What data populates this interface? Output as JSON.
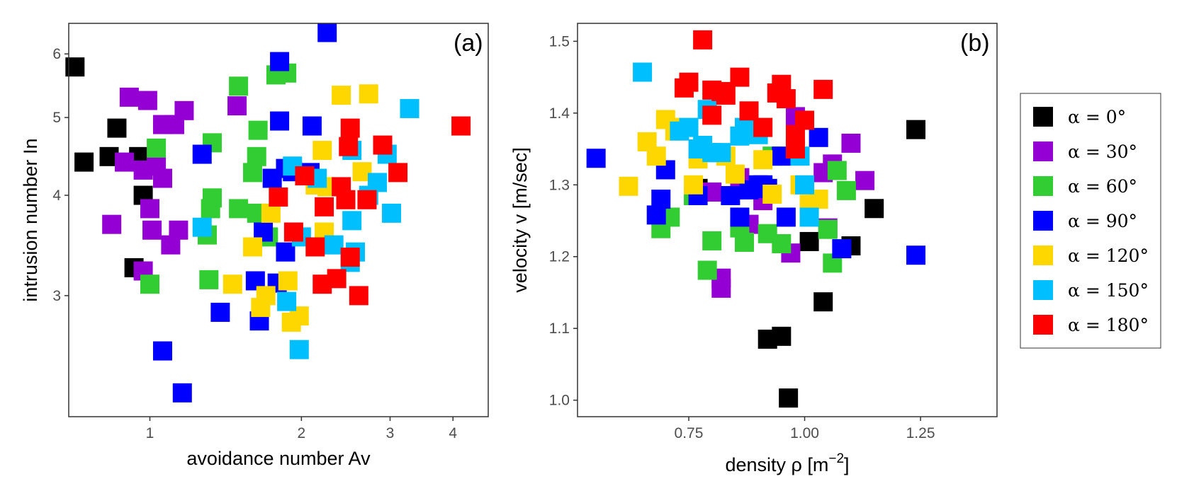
{
  "chart_data": [
    {
      "type": "scatter",
      "panel_label": "(a)",
      "xlabel": "avoidance number Av",
      "ylabel": "intrusion number In",
      "x_scale": "log",
      "y_scale": "log",
      "xlim": [
        0.69,
        4.7
      ],
      "ylim": [
        2.12,
        6.55
      ],
      "x_ticks": [
        1,
        2,
        3,
        4
      ],
      "x_tick_labels": [
        "1",
        "2",
        "3",
        "4"
      ],
      "y_ticks": [
        3,
        4,
        5,
        6
      ],
      "y_tick_labels": [
        "3",
        "4",
        "5",
        "6"
      ],
      "grid": false,
      "series": [
        {
          "name": "α = 0°",
          "points": [
            [
              0.71,
              5.78
            ],
            [
              0.74,
              4.4
            ],
            [
              0.83,
              4.47
            ],
            [
              0.86,
              4.85
            ],
            [
              0.95,
              4.47
            ],
            [
              0.97,
              4.0
            ],
            [
              0.93,
              3.25
            ]
          ]
        },
        {
          "name": "α = 30°",
          "points": [
            [
              0.91,
              5.3
            ],
            [
              0.99,
              5.25
            ],
            [
              0.89,
              4.4
            ],
            [
              0.97,
              4.3
            ],
            [
              1.03,
              4.35
            ],
            [
              1.06,
              4.2
            ],
            [
              1.06,
              4.9
            ],
            [
              1.12,
              4.9
            ],
            [
              1.17,
              5.1
            ],
            [
              1.49,
              5.17
            ],
            [
              1.0,
              3.85
            ],
            [
              1.01,
              3.62
            ],
            [
              1.1,
              3.47
            ],
            [
              1.14,
              3.62
            ],
            [
              0.84,
              3.68
            ],
            [
              0.97,
              3.22
            ]
          ]
        },
        {
          "name": "α = 60°",
          "points": [
            [
              1.78,
              5.65
            ],
            [
              1.87,
              5.68
            ],
            [
              1.5,
              5.47
            ],
            [
              1.33,
              4.65
            ],
            [
              1.64,
              4.82
            ],
            [
              1.63,
              4.47
            ],
            [
              1.6,
              4.27
            ],
            [
              1.03,
              4.58
            ],
            [
              1.33,
              3.97
            ],
            [
              1.32,
              3.85
            ],
            [
              1.5,
              3.85
            ],
            [
              1.63,
              3.8
            ],
            [
              1.72,
              3.55
            ],
            [
              1.3,
              3.57
            ],
            [
              1.31,
              3.14
            ],
            [
              1.0,
              3.1
            ]
          ]
        },
        {
          "name": "α = 90°",
          "points": [
            [
              2.25,
              6.38
            ],
            [
              1.81,
              5.87
            ],
            [
              1.81,
              4.95
            ],
            [
              2.1,
              4.88
            ],
            [
              1.27,
              4.5
            ],
            [
              1.86,
              4.32
            ],
            [
              1.75,
              4.2
            ],
            [
              1.92,
              4.28
            ],
            [
              2.08,
              4.27
            ],
            [
              1.68,
              3.6
            ],
            [
              1.86,
              3.4
            ],
            [
              1.62,
              3.13
            ],
            [
              1.79,
              3.11
            ],
            [
              1.38,
              2.86
            ],
            [
              1.65,
              2.79
            ],
            [
              1.06,
              2.56
            ],
            [
              1.16,
              2.27
            ]
          ]
        },
        {
          "name": "α = 120°",
          "points": [
            [
              2.4,
              5.33
            ],
            [
              2.72,
              5.35
            ],
            [
              2.2,
              4.55
            ],
            [
              2.64,
              4.28
            ],
            [
              2.13,
              4.12
            ],
            [
              2.25,
              4.1
            ],
            [
              1.74,
              3.8
            ],
            [
              1.6,
              3.45
            ],
            [
              2.22,
              3.6
            ],
            [
              1.46,
              3.1
            ],
            [
              1.7,
              3.0
            ],
            [
              1.66,
              2.9
            ],
            [
              1.88,
              3.13
            ],
            [
              1.91,
              2.78
            ],
            [
              1.98,
              2.83
            ]
          ]
        },
        {
          "name": "α = 150°",
          "points": [
            [
              3.28,
              5.13
            ],
            [
              2.52,
              4.55
            ],
            [
              2.96,
              4.5
            ],
            [
              1.92,
              4.35
            ],
            [
              2.15,
              4.2
            ],
            [
              2.83,
              4.15
            ],
            [
              2.72,
              4.0
            ],
            [
              2.52,
              3.72
            ],
            [
              3.02,
              3.8
            ],
            [
              1.27,
              3.65
            ],
            [
              2.0,
              3.55
            ],
            [
              2.32,
              3.47
            ],
            [
              2.5,
              3.3
            ],
            [
              2.56,
              3.4
            ],
            [
              1.87,
              2.95
            ],
            [
              1.98,
              2.57
            ]
          ]
        },
        {
          "name": "α = 180°",
          "points": [
            [
              4.15,
              4.88
            ],
            [
              2.5,
              4.85
            ],
            [
              2.48,
              4.6
            ],
            [
              2.9,
              4.62
            ],
            [
              3.11,
              4.27
            ],
            [
              2.03,
              4.23
            ],
            [
              2.4,
              4.1
            ],
            [
              2.45,
              3.95
            ],
            [
              1.8,
              3.98
            ],
            [
              2.22,
              3.87
            ],
            [
              2.7,
              3.95
            ],
            [
              1.93,
              3.6
            ],
            [
              2.13,
              3.45
            ],
            [
              2.5,
              3.35
            ],
            [
              2.2,
              3.1
            ],
            [
              2.35,
              3.15
            ],
            [
              2.6,
              3.0
            ]
          ]
        }
      ]
    },
    {
      "type": "scatter",
      "panel_label": "(b)",
      "xlabel_text": "density ρ [m",
      "xlabel_sup": "−2",
      "xlabel_end": "]",
      "ylabel": "velocity v [m/sec]",
      "xlim": [
        0.51,
        1.415
      ],
      "ylim": [
        0.977,
        1.525
      ],
      "x_ticks": [
        0.75,
        1.0,
        1.25
      ],
      "x_tick_labels": [
        "0.75",
        "1.00",
        "1.25"
      ],
      "y_ticks": [
        1.0,
        1.1,
        1.2,
        1.3,
        1.4,
        1.5
      ],
      "y_tick_labels": [
        "1.0",
        "1.1",
        "1.2",
        "1.3",
        "1.4",
        "1.5"
      ],
      "grid": false,
      "series": [
        {
          "name": "α = 0°",
          "points": [
            [
              1.24,
              1.377
            ],
            [
              1.15,
              1.267
            ],
            [
              1.1,
              1.215
            ],
            [
              1.01,
              1.221
            ],
            [
              1.04,
              1.137
            ],
            [
              0.92,
              1.085
            ],
            [
              0.95,
              1.089
            ],
            [
              0.965,
              1.003
            ],
            [
              0.77,
              1.295
            ]
          ]
        },
        {
          "name": "α = 30°",
          "points": [
            [
              1.1,
              1.358
            ],
            [
              1.13,
              1.306
            ],
            [
              1.04,
              1.317
            ],
            [
              1.06,
              1.329
            ],
            [
              0.98,
              1.395
            ],
            [
              0.86,
              1.31
            ],
            [
              0.8,
              1.29
            ],
            [
              0.88,
              1.245
            ],
            [
              0.91,
              1.278
            ],
            [
              0.97,
              1.205
            ],
            [
              1.05,
              1.24
            ],
            [
              0.82,
              1.17
            ],
            [
              0.82,
              1.156
            ]
          ]
        },
        {
          "name": "α = 60°",
          "points": [
            [
              1.07,
              1.32
            ],
            [
              1.09,
              1.292
            ],
            [
              1.05,
              1.238
            ],
            [
              1.06,
              1.191
            ],
            [
              0.93,
              1.34
            ],
            [
              0.86,
              1.24
            ],
            [
              0.87,
              1.22
            ],
            [
              0.92,
              1.232
            ],
            [
              0.95,
              1.218
            ],
            [
              0.8,
              1.222
            ],
            [
              0.79,
              1.181
            ],
            [
              0.71,
              1.255
            ],
            [
              0.69,
              1.239
            ],
            [
              0.76,
              1.285
            ]
          ]
        },
        {
          "name": "α = 90°",
          "points": [
            [
              0.55,
              1.337
            ],
            [
              0.7,
              1.321
            ],
            [
              0.77,
              1.285
            ],
            [
              0.69,
              1.28
            ],
            [
              0.68,
              1.258
            ],
            [
              0.84,
              1.285
            ],
            [
              0.86,
              1.255
            ],
            [
              0.88,
              1.293
            ],
            [
              0.9,
              1.3
            ],
            [
              0.92,
              1.295
            ],
            [
              0.95,
              1.34
            ],
            [
              0.96,
              1.255
            ],
            [
              1.03,
              1.366
            ],
            [
              1.08,
              1.211
            ],
            [
              1.24,
              1.202
            ],
            [
              0.79,
              1.345
            ],
            [
              0.91,
              1.3
            ]
          ]
        },
        {
          "name": "α = 120°",
          "points": [
            [
              0.62,
              1.298
            ],
            [
              0.66,
              1.36
            ],
            [
              0.68,
              1.34
            ],
            [
              0.7,
              1.391
            ],
            [
              0.72,
              1.375
            ],
            [
              0.76,
              1.3
            ],
            [
              0.77,
              1.336
            ],
            [
              0.83,
              1.34
            ],
            [
              0.85,
              1.315
            ],
            [
              0.91,
              1.335
            ],
            [
              0.93,
              1.287
            ],
            [
              0.99,
              1.3
            ],
            [
              1.01,
              1.273
            ],
            [
              1.03,
              1.28
            ],
            [
              0.74,
              1.38
            ]
          ]
        },
        {
          "name": "α = 150°",
          "points": [
            [
              0.65,
              1.457
            ],
            [
              0.79,
              1.405
            ],
            [
              0.75,
              1.38
            ],
            [
              0.78,
              1.355
            ],
            [
              0.8,
              1.345
            ],
            [
              0.77,
              1.35
            ],
            [
              0.87,
              1.38
            ],
            [
              0.89,
              1.375
            ],
            [
              0.9,
              1.37
            ],
            [
              0.86,
              1.368
            ],
            [
              0.99,
              1.34
            ],
            [
              1.0,
              1.3
            ],
            [
              1.01,
              1.255
            ],
            [
              0.73,
              1.375
            ],
            [
              0.82,
              1.345
            ]
          ]
        },
        {
          "name": "α = 180°",
          "points": [
            [
              0.78,
              1.502
            ],
            [
              0.74,
              1.435
            ],
            [
              0.75,
              1.443
            ],
            [
              0.8,
              1.432
            ],
            [
              0.82,
              1.43
            ],
            [
              0.83,
              1.425
            ],
            [
              0.86,
              1.45
            ],
            [
              0.88,
              1.403
            ],
            [
              0.91,
              1.38
            ],
            [
              0.94,
              1.428
            ],
            [
              0.95,
              1.44
            ],
            [
              0.96,
              1.42
            ],
            [
              0.98,
              1.37
            ],
            [
              0.98,
              1.35
            ],
            [
              1.0,
              1.39
            ],
            [
              1.04,
              1.433
            ],
            [
              0.8,
              1.397
            ]
          ]
        }
      ]
    }
  ],
  "legend": {
    "items": [
      {
        "label": "α = 0°",
        "color": "#000000"
      },
      {
        "label": "α = 30°",
        "color": "#9400D3"
      },
      {
        "label": "α = 60°",
        "color": "#32CD32"
      },
      {
        "label": "α = 90°",
        "color": "#0000FF"
      },
      {
        "label": "α = 120°",
        "color": "#FFD700"
      },
      {
        "label": "α = 150°",
        "color": "#00BFFF"
      },
      {
        "label": "α = 180°",
        "color": "#FF0000"
      }
    ]
  }
}
